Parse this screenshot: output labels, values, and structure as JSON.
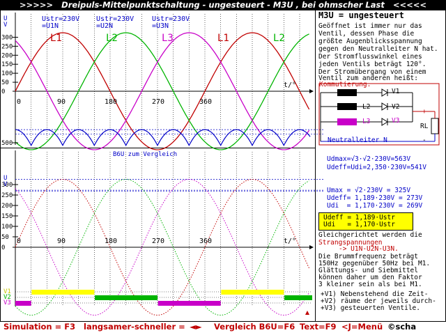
{
  "title": ">>>>>   Dreipuls-Mittelpunktschaltung - ungesteuert - M3U , bei ohmscher Last   <<<<<",
  "colors": {
    "l1": "#c00000",
    "l2": "#00b400",
    "l3": "#c800c8",
    "axis": "#000000",
    "ripple": "#0000c8",
    "highlight": "#ffff00",
    "accent_red": "#c00000"
  },
  "top_plot": {
    "phase_labels": [
      "Ustr=230V\n=U1N",
      "Ustr=230V\n=U2N",
      "Ustr=230V\n=U3N"
    ],
    "wave_labels": [
      "L1",
      "L2",
      "L3",
      "L1",
      "L2"
    ],
    "y_axis_label": "U\nV",
    "y_ticks": [
      "300",
      "250",
      "200",
      "150",
      "100",
      "50",
      "0"
    ],
    "x_ticks": [
      "0",
      "90",
      "180",
      "270",
      "360"
    ],
    "x_axis_label": "t/°"
  },
  "bottom_plot": {
    "b6u_label": "B6U zum Vergleich",
    "y_axis_label": "U\nV",
    "y_ticks": [
      "500",
      "300",
      "250",
      "200",
      "150",
      "100",
      "50",
      "0"
    ],
    "x_ticks": [
      "0",
      "90",
      "180",
      "270",
      "360"
    ],
    "x_axis_label": "t/°",
    "valve_labels": [
      "V1",
      "V2",
      "V3"
    ],
    "valve_sequence": [
      "V3",
      "V1",
      "V2",
      "V3",
      "V1",
      "V2",
      "V3"
    ],
    "udmax": "Udmax=√3·√2·230V=563V",
    "udeff_b6u": "Udeff=Udi=2,350·230V=541V",
    "umax": "Umax = √2·230V = 325V",
    "udeff": "Udeff= 1,189·230V = 273V",
    "udi": "Udi  = 1,170·230V = 269V"
  },
  "sidebar": {
    "heading": "M3U = ungesteuert",
    "desc_lines": [
      "Geöffnet ist immer nur das",
      "Ventil, dessen Phase die",
      "größte Augenblicksspannung",
      "gegen den Neutralleiter N hat.",
      "Der Stromflusswinkel eines",
      "jeden Ventils beträgt 120°.",
      "Der Stromübergang von einem",
      "Ventil zum anderen heißt:"
    ],
    "kommutierung": "Kommutierung.",
    "circuit": {
      "l1": "L1",
      "l2": "L2",
      "l3": "L3",
      "v1": "V1",
      "v2": "V2",
      "v3": "V3",
      "rl": "RL",
      "plus": "+",
      "minus": "-",
      "neutral": "Neutralleiter N"
    },
    "box_line1": "Udeff = 1,189·Ustr",
    "box_line2": "Udi   = 1,170·Ustr",
    "rect_lines": [
      "Gleichgerichtet werden die"
    ],
    "strang": "Strangspannungen",
    "strang_seq": "-> U1N-U2N-U3N.",
    "ripple_lines": [
      "Die Brummfrequenz beträgt",
      "150Hz gegenüber 50Hz bei M1.",
      "Glättungs- und Siebmittel",
      "können daher um den Faktor",
      "3 kleiner sein als bei M1."
    ],
    "valve_note_lines": [
      "+V1) Nebenstehend die Zeit-",
      "+V2) räume der jeweils durch-",
      "+V3) gesteuerten Ventile."
    ]
  },
  "footer": {
    "simulation": "Simulation = F3",
    "speed": "langsamer-schneller = ",
    "speed_keys": "◄►",
    "compare": "Vergleich B6U=F6",
    "text": "Text=F9",
    "menu": "<J=Menü",
    "copyright": "©scha"
  }
}
